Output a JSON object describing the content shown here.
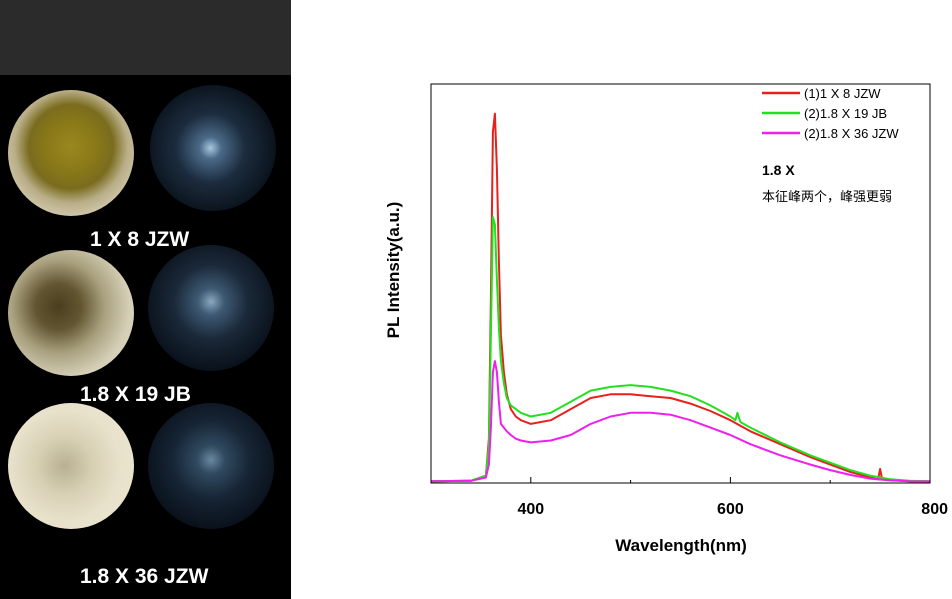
{
  "samples": [
    {
      "label": "1 X  8 JZW"
    },
    {
      "label": "1.8 X  19 JB"
    },
    {
      "label": "1.8 X  36 JZW"
    }
  ],
  "annotation": {
    "title": "1.8 X",
    "text": "本征峰两个，峰强更弱"
  },
  "chart_data": {
    "type": "line",
    "xlabel": "Wavelength(nm)",
    "ylabel": "PL Intensity(a.u.)",
    "xlim": [
      300,
      800
    ],
    "ylim": [
      0,
      1.08
    ],
    "xticks": [
      400,
      600,
      800
    ],
    "legend_position": "top-right",
    "grid": false,
    "series": [
      {
        "name": "(1)1 X 8 JZW",
        "color": "#e8201c",
        "x": [
          300,
          340,
          355,
          358,
          360,
          362,
          364,
          366,
          368,
          370,
          373,
          376,
          380,
          385,
          390,
          400,
          420,
          440,
          460,
          480,
          500,
          520,
          540,
          560,
          580,
          600,
          620,
          650,
          680,
          700,
          720,
          740,
          748,
          750,
          752,
          760,
          780,
          800
        ],
        "y": [
          0.005,
          0.006,
          0.02,
          0.12,
          0.5,
          0.95,
          1.0,
          0.85,
          0.6,
          0.4,
          0.3,
          0.24,
          0.2,
          0.18,
          0.17,
          0.16,
          0.17,
          0.2,
          0.23,
          0.24,
          0.24,
          0.235,
          0.23,
          0.215,
          0.195,
          0.17,
          0.14,
          0.105,
          0.07,
          0.05,
          0.03,
          0.015,
          0.01,
          0.038,
          0.01,
          0.008,
          0.005,
          0.005
        ]
      },
      {
        "name": "(2)1.8 X 19 JB",
        "color": "#22e020",
        "x": [
          300,
          340,
          355,
          358,
          360,
          362,
          364,
          366,
          368,
          370,
          373,
          376,
          380,
          385,
          390,
          400,
          420,
          440,
          460,
          480,
          500,
          520,
          540,
          560,
          580,
          600,
          605,
          607,
          610,
          620,
          650,
          680,
          700,
          720,
          740,
          760,
          780,
          800
        ],
        "y": [
          0.005,
          0.006,
          0.02,
          0.1,
          0.4,
          0.72,
          0.7,
          0.55,
          0.42,
          0.33,
          0.27,
          0.23,
          0.21,
          0.2,
          0.19,
          0.18,
          0.19,
          0.22,
          0.25,
          0.26,
          0.265,
          0.26,
          0.25,
          0.235,
          0.21,
          0.18,
          0.17,
          0.19,
          0.165,
          0.15,
          0.11,
          0.075,
          0.055,
          0.035,
          0.02,
          0.01,
          0.006,
          0.005
        ]
      },
      {
        "name": "(2)1.8 X 36 JZW",
        "color": "#ee20ee",
        "x": [
          300,
          340,
          355,
          358,
          360,
          362,
          364,
          366,
          368,
          370,
          373,
          376,
          380,
          385,
          390,
          400,
          420,
          440,
          460,
          480,
          500,
          520,
          540,
          560,
          580,
          600,
          620,
          650,
          680,
          700,
          720,
          740,
          760,
          780,
          800
        ],
        "y": [
          0.005,
          0.006,
          0.015,
          0.05,
          0.15,
          0.3,
          0.33,
          0.3,
          0.22,
          0.16,
          0.15,
          0.14,
          0.13,
          0.12,
          0.115,
          0.11,
          0.115,
          0.13,
          0.16,
          0.18,
          0.19,
          0.19,
          0.185,
          0.17,
          0.15,
          0.13,
          0.105,
          0.075,
          0.05,
          0.035,
          0.022,
          0.012,
          0.007,
          0.005,
          0.004
        ]
      }
    ]
  }
}
